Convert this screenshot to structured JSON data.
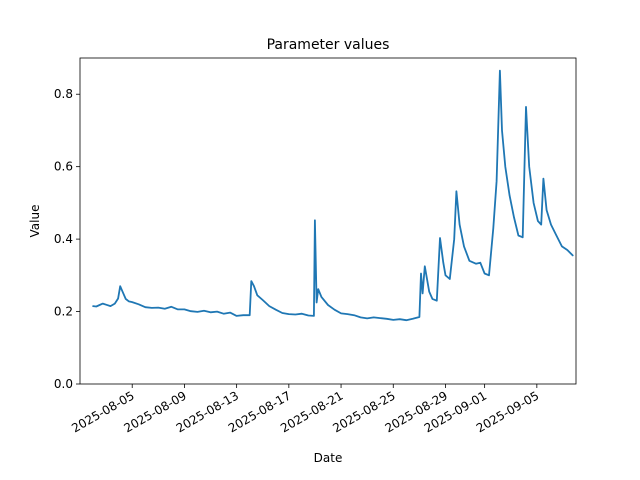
{
  "chart_data": {
    "type": "line",
    "title": "Parameter values",
    "xlabel": "Date",
    "ylabel": "Value",
    "xlim": [
      "2025-08-01",
      "2025-09-08"
    ],
    "ylim": [
      0.0,
      0.9
    ],
    "grid": false,
    "x_ticks": [
      "2025-08-05",
      "2025-08-09",
      "2025-08-13",
      "2025-08-17",
      "2025-08-21",
      "2025-08-25",
      "2025-08-29",
      "2025-09-01",
      "2025-09-05"
    ],
    "y_ticks": [
      "0.0",
      "0.2",
      "0.4",
      "0.6",
      "0.8"
    ],
    "series": [
      {
        "color": "#1f77b4",
        "points": [
          [
            "2025-08-02 00:00",
            0.215
          ],
          [
            "2025-08-02 06:00",
            0.214
          ],
          [
            "2025-08-02 12:00",
            0.218
          ],
          [
            "2025-08-02 18:00",
            0.222
          ],
          [
            "2025-08-03 00:00",
            0.219
          ],
          [
            "2025-08-03 08:00",
            0.215
          ],
          [
            "2025-08-03 16:00",
            0.222
          ],
          [
            "2025-08-03 22:00",
            0.236
          ],
          [
            "2025-08-04 02:00",
            0.27
          ],
          [
            "2025-08-04 06:00",
            0.256
          ],
          [
            "2025-08-04 12:00",
            0.235
          ],
          [
            "2025-08-04 18:00",
            0.228
          ],
          [
            "2025-08-05 00:00",
            0.226
          ],
          [
            "2025-08-05 12:00",
            0.22
          ],
          [
            "2025-08-06 00:00",
            0.212
          ],
          [
            "2025-08-06 12:00",
            0.21
          ],
          [
            "2025-08-07 00:00",
            0.211
          ],
          [
            "2025-08-07 12:00",
            0.208
          ],
          [
            "2025-08-08 00:00",
            0.213
          ],
          [
            "2025-08-08 12:00",
            0.206
          ],
          [
            "2025-08-09 00:00",
            0.206
          ],
          [
            "2025-08-09 12:00",
            0.201
          ],
          [
            "2025-08-10 00:00",
            0.199
          ],
          [
            "2025-08-10 12:00",
            0.202
          ],
          [
            "2025-08-11 00:00",
            0.198
          ],
          [
            "2025-08-11 12:00",
            0.2
          ],
          [
            "2025-08-12 00:00",
            0.194
          ],
          [
            "2025-08-12 12:00",
            0.197
          ],
          [
            "2025-08-13 00:00",
            0.188
          ],
          [
            "2025-08-13 12:00",
            0.19
          ],
          [
            "2025-08-14 00:00",
            0.19
          ],
          [
            "2025-08-14 03:00",
            0.284
          ],
          [
            "2025-08-14 08:00",
            0.27
          ],
          [
            "2025-08-14 14:00",
            0.245
          ],
          [
            "2025-08-15 00:00",
            0.232
          ],
          [
            "2025-08-15 12:00",
            0.215
          ],
          [
            "2025-08-16 00:00",
            0.205
          ],
          [
            "2025-08-16 12:00",
            0.196
          ],
          [
            "2025-08-17 00:00",
            0.193
          ],
          [
            "2025-08-17 12:00",
            0.192
          ],
          [
            "2025-08-18 00:00",
            0.194
          ],
          [
            "2025-08-18 12:00",
            0.189
          ],
          [
            "2025-08-18 22:00",
            0.188
          ],
          [
            "2025-08-19 00:00",
            0.452
          ],
          [
            "2025-08-19 03:00",
            0.225
          ],
          [
            "2025-08-19 06:00",
            0.262
          ],
          [
            "2025-08-19 12:00",
            0.24
          ],
          [
            "2025-08-20 00:00",
            0.218
          ],
          [
            "2025-08-20 12:00",
            0.205
          ],
          [
            "2025-08-21 00:00",
            0.195
          ],
          [
            "2025-08-21 12:00",
            0.193
          ],
          [
            "2025-08-22 00:00",
            0.19
          ],
          [
            "2025-08-22 12:00",
            0.184
          ],
          [
            "2025-08-23 00:00",
            0.181
          ],
          [
            "2025-08-23 12:00",
            0.184
          ],
          [
            "2025-08-24 00:00",
            0.182
          ],
          [
            "2025-08-24 12:00",
            0.18
          ],
          [
            "2025-08-25 00:00",
            0.177
          ],
          [
            "2025-08-25 12:00",
            0.179
          ],
          [
            "2025-08-26 00:00",
            0.176
          ],
          [
            "2025-08-26 12:00",
            0.18
          ],
          [
            "2025-08-27 00:00",
            0.185
          ],
          [
            "2025-08-27 03:00",
            0.305
          ],
          [
            "2025-08-27 06:00",
            0.25
          ],
          [
            "2025-08-27 10:00",
            0.325
          ],
          [
            "2025-08-27 18:00",
            0.255
          ],
          [
            "2025-08-28 00:00",
            0.235
          ],
          [
            "2025-08-28 08:00",
            0.23
          ],
          [
            "2025-08-28 14:00",
            0.403
          ],
          [
            "2025-08-28 20:00",
            0.335
          ],
          [
            "2025-08-29 00:00",
            0.3
          ],
          [
            "2025-08-29 08:00",
            0.29
          ],
          [
            "2025-08-29 16:00",
            0.4
          ],
          [
            "2025-08-29 20:00",
            0.532
          ],
          [
            "2025-08-30 02:00",
            0.44
          ],
          [
            "2025-08-30 10:00",
            0.38
          ],
          [
            "2025-08-30 20:00",
            0.34
          ],
          [
            "2025-08-31 08:00",
            0.332
          ],
          [
            "2025-08-31 16:00",
            0.335
          ],
          [
            "2025-09-01 00:00",
            0.305
          ],
          [
            "2025-09-01 08:00",
            0.3
          ],
          [
            "2025-09-01 16:00",
            0.43
          ],
          [
            "2025-09-01 22:00",
            0.56
          ],
          [
            "2025-09-02 04:00",
            0.865
          ],
          [
            "2025-09-02 08:00",
            0.7
          ],
          [
            "2025-09-02 14:00",
            0.6
          ],
          [
            "2025-09-02 22:00",
            0.52
          ],
          [
            "2025-09-03 06:00",
            0.46
          ],
          [
            "2025-09-03 14:00",
            0.41
          ],
          [
            "2025-09-03 22:00",
            0.405
          ],
          [
            "2025-09-04 04:00",
            0.765
          ],
          [
            "2025-09-04 10:00",
            0.6
          ],
          [
            "2025-09-04 18:00",
            0.5
          ],
          [
            "2025-09-05 02:00",
            0.45
          ],
          [
            "2025-09-05 08:00",
            0.44
          ],
          [
            "2025-09-05 12:00",
            0.567
          ],
          [
            "2025-09-05 18:00",
            0.48
          ],
          [
            "2025-09-06 02:00",
            0.44
          ],
          [
            "2025-09-06 12:00",
            0.41
          ],
          [
            "2025-09-06 22:00",
            0.38
          ],
          [
            "2025-09-07 08:00",
            0.37
          ],
          [
            "2025-09-07 18:00",
            0.355
          ]
        ]
      }
    ]
  }
}
